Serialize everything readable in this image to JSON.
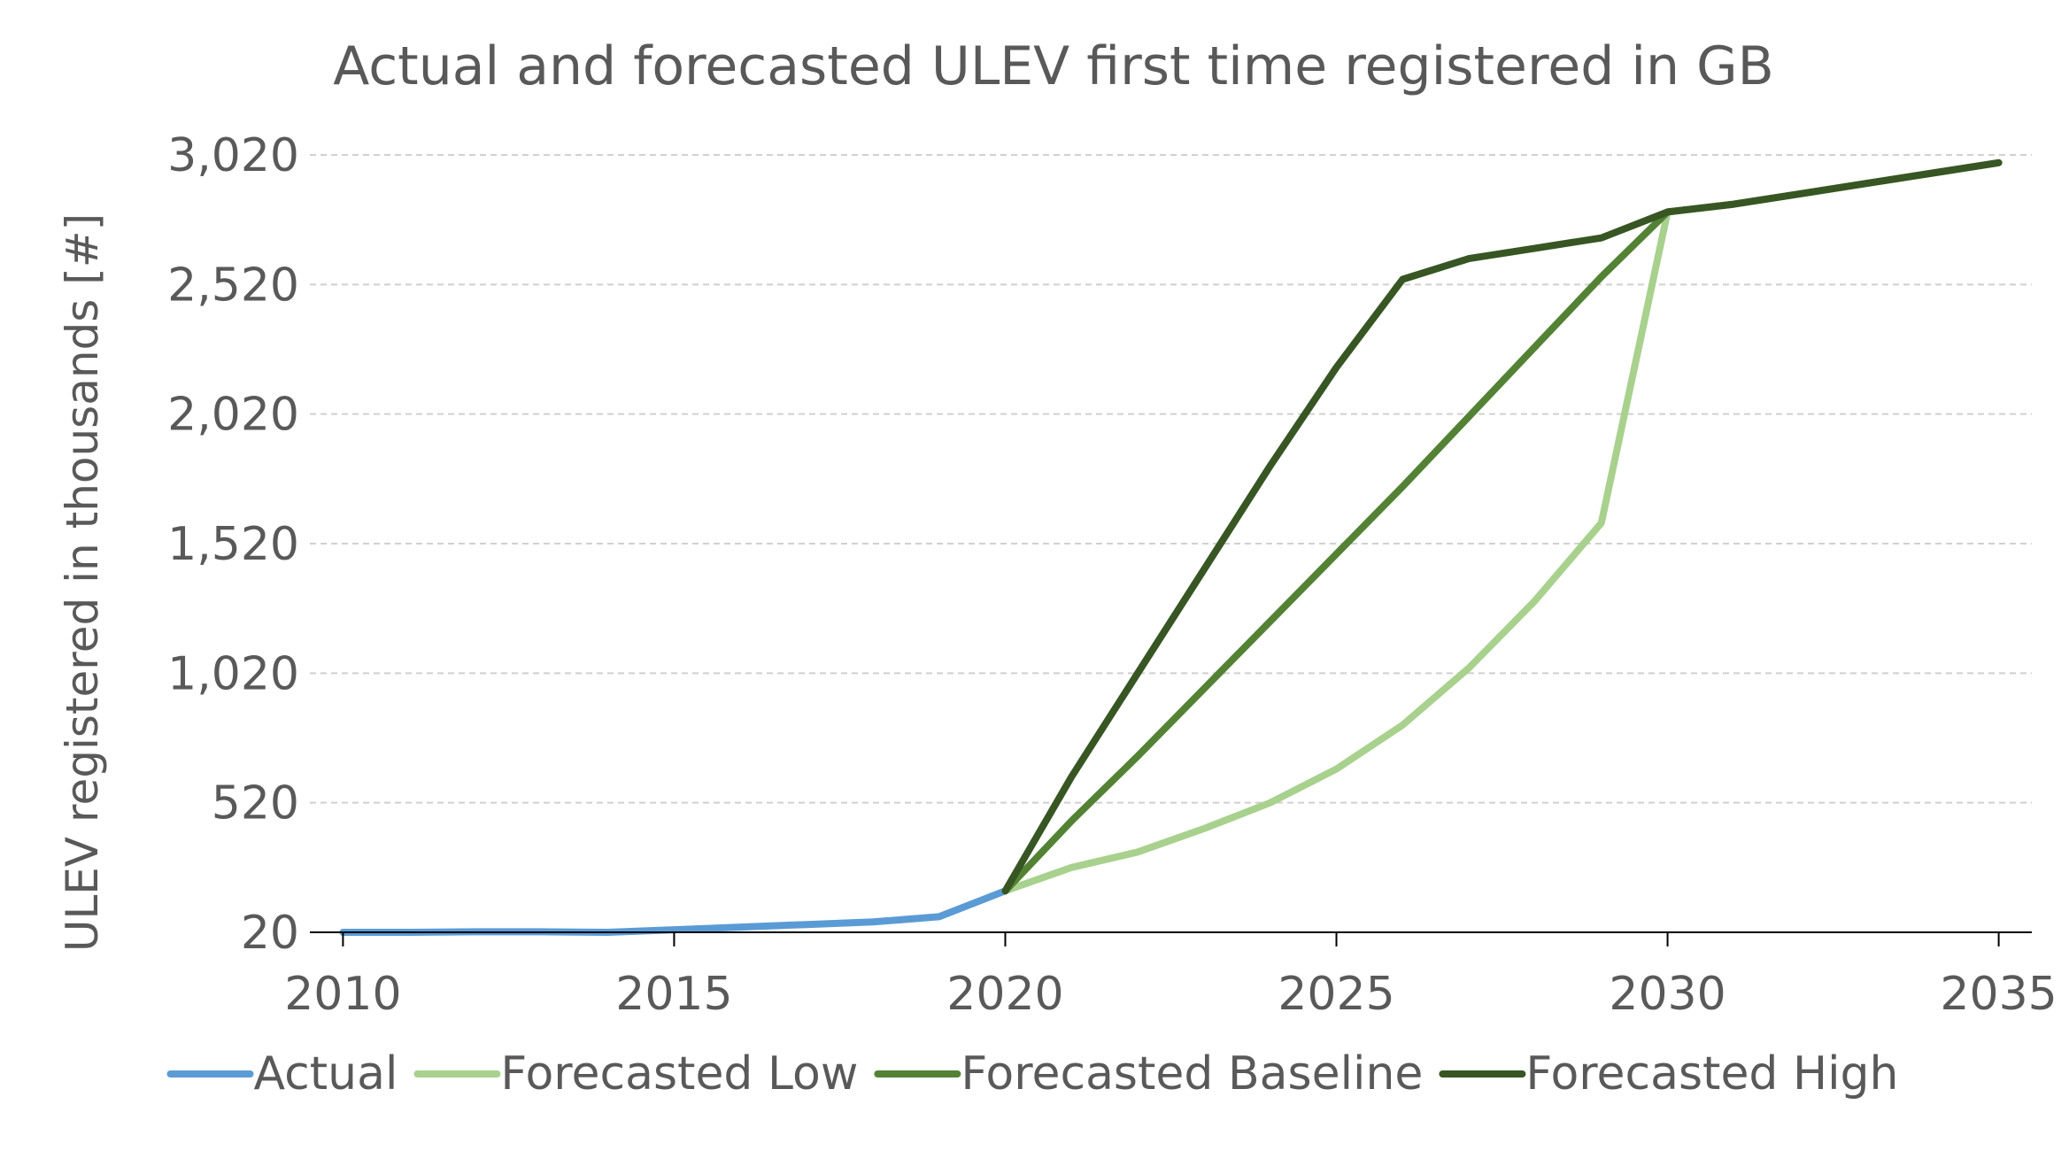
{
  "chart_data": {
    "type": "line",
    "title": "Actual and forecasted ULEV first time registered in GB",
    "xlabel": "",
    "ylabel": "ULEV registered in thousands [#]",
    "xlim": [
      2009.5,
      2035.5
    ],
    "ylim": [
      20,
      3020
    ],
    "x_ticks": [
      2010,
      2015,
      2020,
      2025,
      2030,
      2035
    ],
    "x_tick_labels": [
      "2010",
      "2015",
      "2020",
      "2025",
      "2030",
      "2035"
    ],
    "y_ticks": [
      20,
      520,
      1020,
      1520,
      2020,
      2520,
      3020
    ],
    "y_tick_labels": [
      "20",
      "520",
      "1,020",
      "1,520",
      "2,020",
      "2,520",
      "3,020"
    ],
    "grid": "horizontal dashed",
    "legend_position": "bottom",
    "series": [
      {
        "name": "Actual",
        "color": "#5b9bd5",
        "x": [
          2010,
          2011,
          2012,
          2013,
          2014,
          2015,
          2016,
          2017,
          2018,
          2019,
          2020
        ],
        "y": [
          20,
          20,
          22,
          22,
          20,
          30,
          40,
          50,
          60,
          80,
          180
        ]
      },
      {
        "name": "Forecasted Low",
        "color": "#a9d18e",
        "x": [
          2020,
          2021,
          2022,
          2023,
          2024,
          2025,
          2026,
          2027,
          2028,
          2029,
          2030
        ],
        "y": [
          180,
          270,
          330,
          420,
          520,
          650,
          820,
          1040,
          1300,
          1600,
          2800
        ]
      },
      {
        "name": "Forecasted Baseline",
        "color": "#548235",
        "x": [
          2020,
          2021,
          2022,
          2023,
          2024,
          2025,
          2026,
          2027,
          2028,
          2029,
          2030,
          2031,
          2032,
          2033,
          2034,
          2035
        ],
        "y": [
          180,
          450,
          700,
          960,
          1220,
          1480,
          1740,
          2010,
          2280,
          2550,
          2800,
          2830,
          2870,
          2910,
          2950,
          2990
        ]
      },
      {
        "name": "Forecasted High",
        "color": "#375623",
        "x": [
          2020,
          2021,
          2022,
          2023,
          2024,
          2025,
          2026,
          2027,
          2028,
          2029,
          2030,
          2031,
          2032,
          2033,
          2034,
          2035
        ],
        "y": [
          180,
          620,
          1020,
          1420,
          1820,
          2200,
          2540,
          2620,
          2660,
          2700,
          2800,
          2830,
          2870,
          2910,
          2950,
          2990
        ]
      }
    ]
  }
}
